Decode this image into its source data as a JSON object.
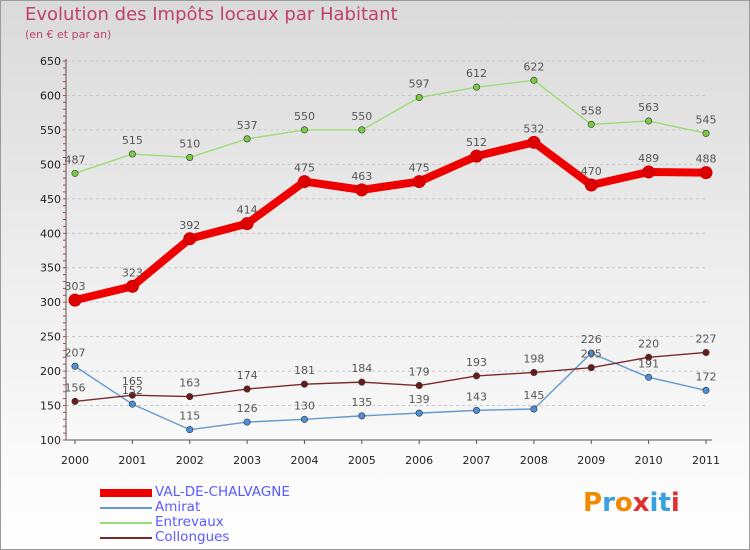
{
  "page": {
    "title": "Evolution des Impôts locaux par Habitant",
    "subtitle": "(en € et par an)",
    "logo": "Proxiti",
    "colors": {
      "title": "#c0406a",
      "background_top": "#dadada",
      "legend_text": "#5a5aff"
    }
  },
  "chart_data": {
    "type": "line",
    "x": [
      2000,
      2001,
      2002,
      2003,
      2004,
      2005,
      2006,
      2007,
      2008,
      2009,
      2010,
      2011
    ],
    "ylim": [
      100,
      650
    ],
    "yticks": [
      100,
      150,
      200,
      250,
      300,
      350,
      400,
      450,
      500,
      550,
      600,
      650
    ],
    "grid": "horizontal dashed",
    "legend_position": "bottom-left",
    "series": [
      {
        "name": "VAL-DE-CHALVAGNE",
        "color": "#ee0000",
        "marker": "#dd0000",
        "values": [
          303,
          323,
          392,
          414,
          475,
          463,
          475,
          512,
          532,
          470,
          489,
          488
        ]
      },
      {
        "name": "Amirat",
        "color": "#6699cc",
        "marker": "#4a90d9",
        "values": [
          207,
          152,
          115,
          126,
          130,
          135,
          139,
          143,
          145,
          226,
          191,
          172
        ]
      },
      {
        "name": "Entrevaux",
        "color": "#99dd77",
        "marker": "#77cc44",
        "values": [
          487,
          515,
          510,
          537,
          550,
          550,
          597,
          612,
          622,
          558,
          563,
          545
        ]
      },
      {
        "name": "Collongues",
        "color": "#7a2a2a",
        "marker": "#6a1a1a",
        "values": [
          156,
          165,
          163,
          174,
          181,
          184,
          179,
          193,
          198,
          205,
          220,
          227
        ]
      }
    ]
  }
}
